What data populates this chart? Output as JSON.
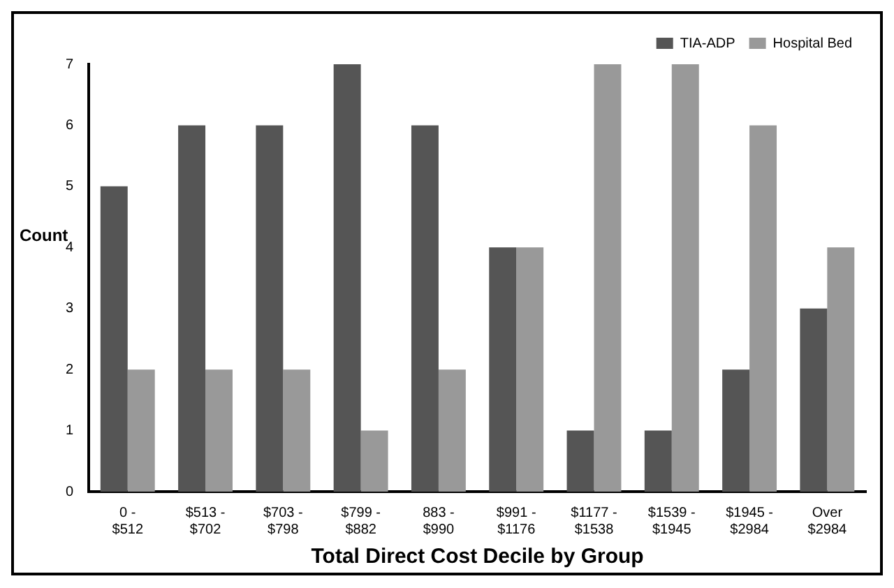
{
  "chart_data": {
    "type": "bar",
    "xlabel": "Total Direct Cost Decile by Group",
    "ylabel": "Count",
    "categories": [
      "0 - $512",
      "$513 - $702",
      "$703 - $798",
      "$799 - $882",
      "883 - $990",
      "$991 - $1176",
      "$1177 - $1538",
      "$1539 - $1945",
      "$1945 - $2984",
      "Over $2984"
    ],
    "series": [
      {
        "name": "TIA-ADP",
        "color": "#555555",
        "values": [
          5,
          6,
          6,
          7,
          6,
          4,
          1,
          1,
          2,
          3
        ]
      },
      {
        "name": "Hospital Bed",
        "color": "#999999",
        "values": [
          2,
          2,
          2,
          1,
          2,
          4,
          7,
          7,
          6,
          4
        ]
      }
    ],
    "ylim": [
      0,
      7
    ],
    "yticks": [
      0,
      1,
      2,
      3,
      4,
      5,
      6,
      7
    ],
    "grid": false,
    "legend": "top right"
  }
}
